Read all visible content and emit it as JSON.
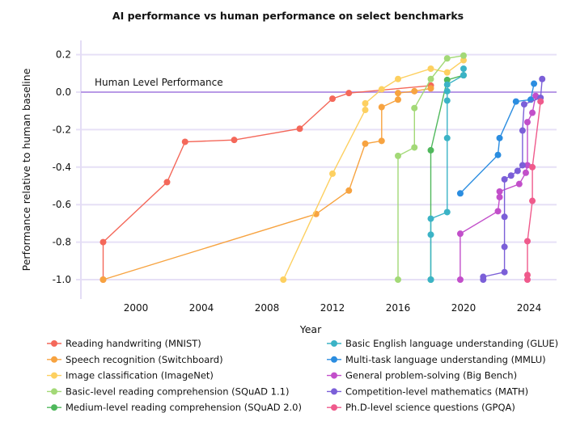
{
  "chart_data": {
    "type": "line",
    "title": "AI performance vs human performance on select benchmarks",
    "xlabel": "Year",
    "ylabel": "Performance relative to human baseline",
    "xlim": [
      1996.6,
      2025.7
    ],
    "ylim": [
      -1.1,
      0.27
    ],
    "x_ticks": [
      "2000",
      "2004",
      "2008",
      "2012",
      "2016",
      "2020",
      "2024"
    ],
    "y_ticks": [
      "0.2",
      "0.0",
      "-0.2",
      "-0.4",
      "-0.6",
      "-0.8",
      "-1.0"
    ],
    "grid": "horizontal",
    "legend_position": "bottom",
    "reference_line": {
      "label": "Human Level Performance",
      "y": 0.0,
      "color": "#b89ae6"
    },
    "series": [
      {
        "name": "Reading handwriting (MNIST)",
        "color": "#f4685a",
        "x": [
          1998,
          1998,
          2001.9,
          2003,
          2006,
          2010,
          2012,
          2013,
          2018
        ],
        "y": [
          -1.0,
          -0.8,
          -0.48,
          -0.265,
          -0.255,
          -0.195,
          -0.035,
          -0.005,
          0.035
        ]
      },
      {
        "name": "Speech recognition (Switchboard)",
        "color": "#f7a340",
        "x": [
          1998,
          2011,
          2013,
          2014,
          2015,
          2015,
          2016,
          2016,
          2017,
          2018
        ],
        "y": [
          -1.0,
          -0.65,
          -0.525,
          -0.275,
          -0.26,
          -0.08,
          -0.04,
          -0.005,
          0.005,
          0.02
        ]
      },
      {
        "name": "Image classification (ImageNet)",
        "color": "#fdd060",
        "x": [
          2009,
          2012,
          2014,
          2014,
          2015,
          2016,
          2018,
          2019,
          2020
        ],
        "y": [
          -1.0,
          -0.435,
          -0.095,
          -0.06,
          0.015,
          0.07,
          0.125,
          0.105,
          0.17
        ]
      },
      {
        "name": "Basic-level reading comprehension (SQuAD 1.1)",
        "color": "#a3d977",
        "x": [
          2016,
          2016,
          2017,
          2017,
          2018,
          2019,
          2020
        ],
        "y": [
          -1.0,
          -0.34,
          -0.295,
          -0.085,
          0.07,
          0.18,
          0.195
        ]
      },
      {
        "name": "Medium-level reading comprehension (SQuAD 2.0)",
        "color": "#4fb85c",
        "x": [
          2018,
          2018,
          2019,
          2020
        ],
        "y": [
          -1.0,
          -0.31,
          0.065,
          0.09
        ]
      },
      {
        "name": "Basic English language understanding (GLUE)",
        "color": "#3bb3c6",
        "x": [
          2018,
          2018,
          2018,
          2019,
          2019,
          2019,
          2019,
          2019,
          2020,
          2020
        ],
        "y": [
          -1.0,
          -0.76,
          -0.675,
          -0.64,
          -0.245,
          -0.045,
          0.005,
          0.04,
          0.09,
          0.125
        ]
      },
      {
        "name": "Multi-task language understanding (MMLU)",
        "color": "#2b8de0",
        "x": [
          2019.8,
          2022.1,
          2022.2,
          2023.2,
          2024.1,
          2024.3
        ],
        "y": [
          -0.54,
          -0.335,
          -0.245,
          -0.05,
          -0.04,
          0.045
        ]
      },
      {
        "name": "General problem-solving (Big Bench)",
        "color": "#c24fca",
        "x": [
          2019.8,
          2019.8,
          2022.1,
          2022.2,
          2022.2,
          2023.4,
          2023.8,
          2023.9,
          2023.9,
          2024.2,
          2024.4
        ],
        "y": [
          -1.0,
          -0.755,
          -0.635,
          -0.56,
          -0.53,
          -0.49,
          -0.43,
          -0.39,
          -0.16,
          -0.11,
          -0.02
        ]
      },
      {
        "name": "Competition-level mathematics (MATH)",
        "color": "#7b5fd8",
        "x": [
          2021.2,
          2021.2,
          2022.5,
          2022.5,
          2022.5,
          2022.5,
          2022.9,
          2023.3,
          2023.6,
          2023.6,
          2023.7,
          2024.7,
          2024.8
        ],
        "y": [
          -1.0,
          -0.985,
          -0.96,
          -0.825,
          -0.665,
          -0.465,
          -0.445,
          -0.42,
          -0.39,
          -0.205,
          -0.065,
          -0.03,
          0.07
        ]
      },
      {
        "name": "Ph.D-level science questions (GPQA)",
        "color": "#ef5a8c",
        "x": [
          2023.9,
          2023.9,
          2023.9,
          2024.2,
          2024.2,
          2024.7
        ],
        "y": [
          -1.0,
          -0.975,
          -0.795,
          -0.58,
          -0.4,
          -0.05
        ]
      }
    ]
  }
}
